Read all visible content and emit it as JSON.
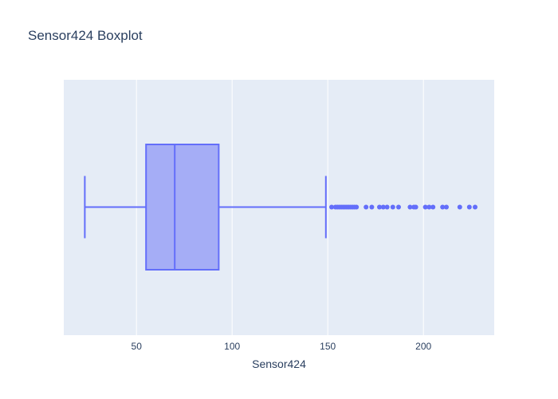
{
  "chart_data": {
    "type": "box",
    "title": "Sensor424 Boxplot",
    "xlabel": "Sensor424",
    "ylabel": "",
    "orientation": "horizontal",
    "x_range": [
      12,
      237
    ],
    "x_ticks": [
      50,
      100,
      150,
      200
    ],
    "x_tick_labels": [
      "50",
      "100",
      "150",
      "200"
    ],
    "grid": true,
    "series": [
      {
        "lower_fence": 23,
        "q1": 55,
        "median": 70,
        "q3": 93,
        "upper_fence": 149,
        "outliers": [
          152,
          154,
          155,
          156,
          157,
          158,
          159,
          160,
          161,
          162,
          163,
          164,
          165,
          170,
          173,
          177,
          179,
          181,
          184,
          187,
          193,
          195,
          196,
          201,
          203,
          205,
          210,
          212,
          219,
          224,
          227
        ]
      }
    ],
    "colors": {
      "box_fill": "#a5adf6",
      "box_line": "#636efa",
      "plot_bg": "#e5ecf6",
      "grid": "#ffffff",
      "text": "#2a3f5f"
    }
  }
}
